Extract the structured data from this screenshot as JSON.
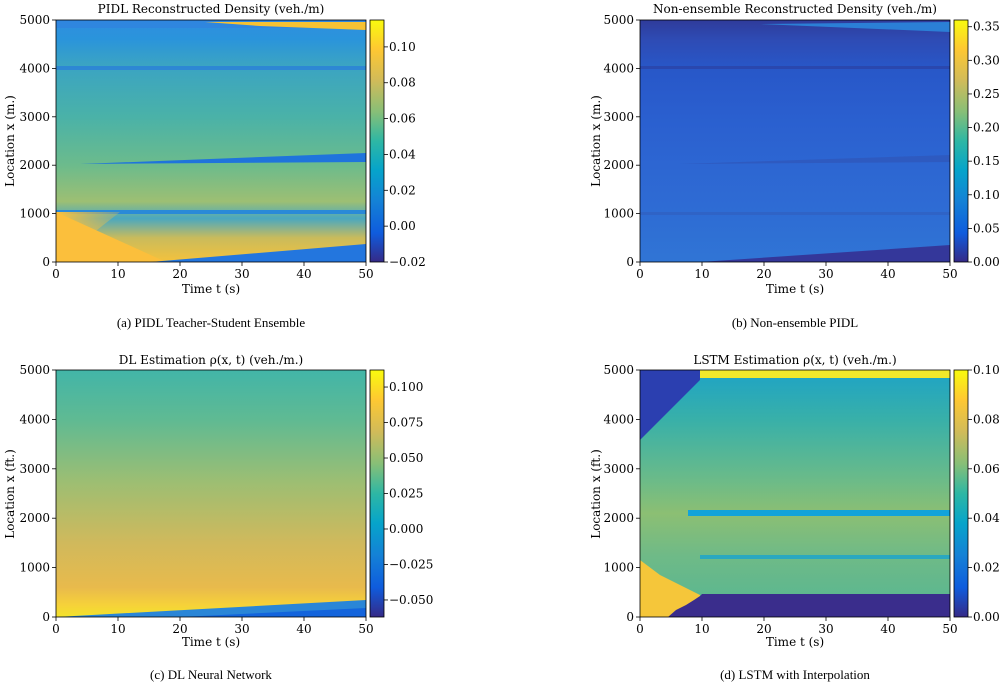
{
  "chart_data": [
    {
      "type": "heatmap",
      "title": "PIDL Reconstructed Density (veh./m)",
      "caption": "(a) PIDL Teacher-Student Ensemble",
      "xlabel": "Time t (s)",
      "ylabel": "Location x (m.)",
      "xlim": [
        0,
        50
      ],
      "ylim": [
        0,
        5000
      ],
      "xticks": [
        "0",
        "10",
        "20",
        "30",
        "40",
        "50"
      ],
      "yticks": [
        "0",
        "1000",
        "2000",
        "3000",
        "4000",
        "5000"
      ],
      "colorbar": {
        "min": -0.02,
        "max": 0.115,
        "ticks": [
          "−0.02",
          "0.00",
          "0.02",
          "0.04",
          "0.06",
          "0.08",
          "0.10"
        ],
        "tickValues": [
          -0.02,
          0.0,
          0.02,
          0.04,
          0.06,
          0.08,
          0.1
        ]
      },
      "colormap": "parula",
      "grid": false
    },
    {
      "type": "heatmap",
      "title": "Non-ensemble Reconstructed Density (veh./m)",
      "caption": "(b) Non-ensemble PIDL",
      "xlabel": "Time t (s)",
      "ylabel": "Location x (m.)",
      "xlim": [
        0,
        50
      ],
      "ylim": [
        0,
        5000
      ],
      "xticks": [
        "0",
        "10",
        "20",
        "30",
        "40",
        "50"
      ],
      "yticks": [
        "0",
        "1000",
        "2000",
        "3000",
        "4000",
        "5000"
      ],
      "colorbar": {
        "min": 0.0,
        "max": 0.36,
        "ticks": [
          "0.00",
          "0.05",
          "0.10",
          "0.15",
          "0.20",
          "0.25",
          "0.30",
          "0.35"
        ],
        "tickValues": [
          0.0,
          0.05,
          0.1,
          0.15,
          0.2,
          0.25,
          0.3,
          0.35
        ]
      },
      "colormap": "parula",
      "grid": false
    },
    {
      "type": "heatmap",
      "title": "DL Estimation ρ(x, t) (veh./m.)",
      "caption": "(c) DL Neural Network",
      "xlabel": "Time t (s)",
      "ylabel": "Location x (ft.)",
      "xlim": [
        0,
        50
      ],
      "ylim": [
        0,
        5000
      ],
      "xticks": [
        "0",
        "10",
        "20",
        "30",
        "40",
        "50"
      ],
      "yticks": [
        "0",
        "1000",
        "2000",
        "3000",
        "4000",
        "5000"
      ],
      "colorbar": {
        "min": -0.062,
        "max": 0.112,
        "ticks": [
          "−0.050",
          "−0.025",
          "0.000",
          "0.025",
          "0.050",
          "0.075",
          "0.100"
        ],
        "tickValues": [
          -0.05,
          -0.025,
          0.0,
          0.025,
          0.05,
          0.075,
          0.1
        ]
      },
      "colormap": "parula",
      "grid": false
    },
    {
      "type": "heatmap",
      "title": "LSTM Estimation ρ(x, t) (veh./m.)",
      "caption": "(d) LSTM with Interpolation",
      "xlabel": "Time t (s)",
      "ylabel": "Location x (ft.)",
      "xlim": [
        0,
        50
      ],
      "ylim": [
        0,
        5000
      ],
      "xticks": [
        "0",
        "10",
        "20",
        "30",
        "40",
        "50"
      ],
      "yticks": [
        "0",
        "1000",
        "2000",
        "3000",
        "4000",
        "5000"
      ],
      "colorbar": {
        "min": 0.0,
        "max": 0.1,
        "ticks": [
          "0.00",
          "0.02",
          "0.04",
          "0.06",
          "0.08",
          "0.10"
        ],
        "tickValues": [
          0.0,
          0.02,
          0.04,
          0.06,
          0.08,
          0.1
        ]
      },
      "colormap": "parula",
      "grid": false
    }
  ]
}
